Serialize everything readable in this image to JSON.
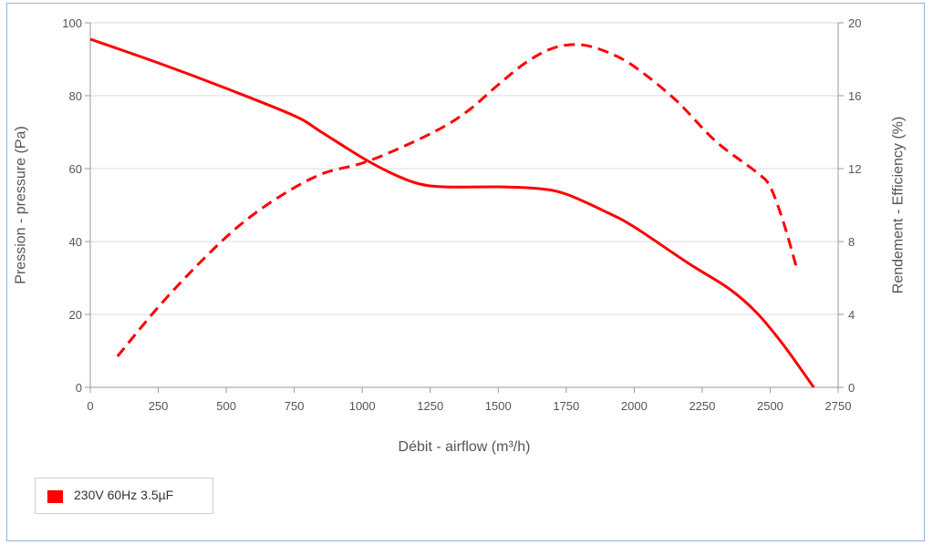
{
  "chart_data": {
    "type": "line",
    "xlabel": "Débit - airflow (m³/h)",
    "ylabel_left": "Pression - pressure (Pa)",
    "ylabel_right": "Rendement - Efficiency (%)",
    "xlim": [
      0,
      2750
    ],
    "ylim_left": [
      0,
      100
    ],
    "ylim_right": [
      0,
      20
    ],
    "x_ticks": [
      "0",
      "250",
      "500",
      "750",
      "1000",
      "1250",
      "1500",
      "1750",
      "2000",
      "2250",
      "2500",
      "2750"
    ],
    "y_left_ticks": [
      "0",
      "20",
      "40",
      "60",
      "80",
      "100"
    ],
    "y_right_ticks": [
      "0",
      "4",
      "8",
      "12",
      "16",
      "20"
    ],
    "grid": true,
    "legend_position": "bottom-left",
    "series": [
      {
        "name": "230V 60Hz 3.5µF",
        "color": "#ff0000",
        "pressure": {
          "axis": "left",
          "style": "solid",
          "x": [
            0,
            250,
            500,
            750,
            850,
            1000,
            1100,
            1200,
            1300,
            1500,
            1650,
            1750,
            1900,
            2000,
            2200,
            2350,
            2450,
            2550,
            2660
          ],
          "y": [
            95.5,
            89,
            82,
            74.5,
            70,
            63,
            59,
            56,
            55,
            55,
            54.5,
            53,
            48,
            44,
            34,
            27,
            20.5,
            11.5,
            0
          ]
        },
        "efficiency": {
          "axis": "right",
          "style": "dashed",
          "x": [
            100,
            250,
            400,
            550,
            700,
            850,
            1000,
            1150,
            1300,
            1400,
            1500,
            1600,
            1700,
            1800,
            1900,
            2000,
            2150,
            2300,
            2450,
            2500,
            2550,
            2600
          ],
          "y": [
            1.7,
            4.4,
            6.8,
            8.9,
            10.5,
            11.7,
            12.3,
            13.2,
            14.3,
            15.3,
            16.6,
            17.8,
            18.6,
            18.8,
            18.4,
            17.6,
            15.8,
            13.5,
            11.8,
            11.0,
            9.0,
            6.4
          ]
        }
      }
    ]
  }
}
